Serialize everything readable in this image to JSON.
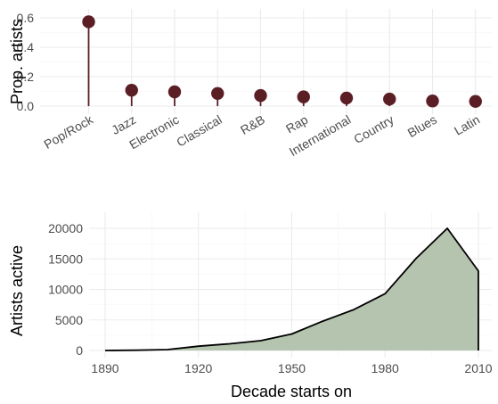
{
  "chart_data": [
    {
      "type": "lollipop",
      "ylabel": "Prop. artists",
      "xlabel": "",
      "ylim": [
        0,
        0.6
      ],
      "yticks": [
        0.0,
        0.2,
        0.4,
        0.6
      ],
      "ytick_labels": [
        "0.0",
        "0.2",
        "0.4",
        "0.6"
      ],
      "categories": [
        "Pop/Rock",
        "Jazz",
        "Electronic",
        "Classical",
        "R&B",
        "Rap",
        "International",
        "Country",
        "Blues",
        "Latin"
      ],
      "values": [
        0.573,
        0.108,
        0.097,
        0.086,
        0.072,
        0.063,
        0.055,
        0.048,
        0.035,
        0.032
      ],
      "color": "#5a1e24",
      "grid": true
    },
    {
      "type": "area",
      "xlabel": "Decade starts on",
      "ylabel": "Artists active",
      "xlim": [
        1890,
        2010
      ],
      "ylim": [
        0,
        20000
      ],
      "xticks": [
        1890,
        1920,
        1950,
        1980,
        2010
      ],
      "yticks": [
        0,
        5000,
        10000,
        15000,
        20000
      ],
      "x": [
        1890,
        1900,
        1910,
        1920,
        1930,
        1940,
        1950,
        1960,
        1970,
        1980,
        1990,
        2000,
        2010
      ],
      "y": [
        0,
        50,
        150,
        700,
        1100,
        1600,
        2700,
        4800,
        6700,
        9300,
        15100,
        20000,
        13000
      ],
      "fill": "#b5c4ae",
      "line_color": "#000000",
      "grid": true
    }
  ]
}
